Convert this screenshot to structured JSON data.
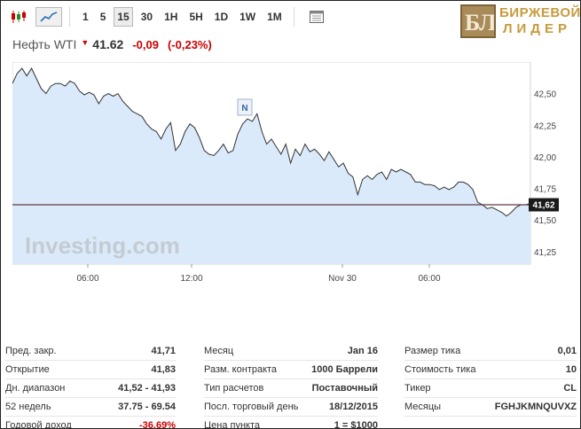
{
  "toolbar": {
    "chart_types": [
      {
        "icon": "candlestick-icon",
        "active": false
      },
      {
        "icon": "line-chart-icon",
        "active": true
      }
    ],
    "timeframes": [
      {
        "label": "1",
        "active": false
      },
      {
        "label": "5",
        "active": false
      },
      {
        "label": "15",
        "active": true
      },
      {
        "label": "30",
        "active": false
      },
      {
        "label": "1H",
        "active": false
      },
      {
        "label": "5H",
        "active": false
      },
      {
        "label": "1D",
        "active": false
      },
      {
        "label": "1W",
        "active": false
      },
      {
        "label": "1M",
        "active": false
      }
    ],
    "calendar_icon": "calendar-icon"
  },
  "logo": {
    "mark": "БЛ",
    "line1": "БИРЖЕВОЙ",
    "line2": "ЛИДЕР"
  },
  "quote": {
    "name": "Нефть WTI",
    "price": "41.62",
    "change": "-0,09",
    "change_pct": "(-0,23%)",
    "direction_icon": "down-arrow-icon"
  },
  "colors": {
    "line": "#333333",
    "fill": "#dbeafa",
    "price_line": "#5c3a44",
    "negative": "#cc0000",
    "logo": "#c79a3c"
  },
  "chart_data": {
    "type": "area",
    "watermark": "Investing.com",
    "x_tick_labels": [
      "06:00",
      "12:00",
      "Nov 30",
      "06:00"
    ],
    "y_ticks": [
      42.5,
      42.25,
      42.0,
      41.75,
      41.5,
      41.25
    ],
    "y_tick_labels": [
      "42,50",
      "42,25",
      "42,00",
      "41,75",
      "41,50",
      "41,25"
    ],
    "ylim": [
      41.15,
      42.75
    ],
    "current_price": 41.62,
    "current_price_label": "41,62",
    "news_marker": "N",
    "grid": false,
    "series": [
      {
        "values": [
          42.58,
          42.66,
          42.7,
          42.64,
          42.7,
          42.62,
          42.54,
          42.5,
          42.56,
          42.58,
          42.58,
          42.56,
          42.6,
          42.58,
          42.52,
          42.49,
          42.51,
          42.49,
          42.42,
          42.48,
          42.5,
          42.48,
          42.5,
          42.44,
          42.4,
          42.36,
          42.34,
          42.32,
          42.26,
          42.22,
          42.2,
          42.14,
          42.22,
          42.27,
          42.05,
          42.1,
          42.2,
          42.26,
          42.23,
          42.15,
          42.05,
          42.02,
          42.01,
          42.05,
          42.1,
          42.03,
          42.05,
          42.18,
          42.26,
          42.3,
          42.28,
          42.34,
          42.2,
          42.1,
          42.14,
          42.08,
          42.02,
          42.1,
          41.95,
          42.06,
          42.01,
          42.1,
          42.04,
          42.06,
          42.02,
          41.97,
          42.04,
          41.98,
          41.92,
          41.95,
          41.87,
          41.84,
          41.7,
          41.82,
          41.85,
          41.82,
          41.86,
          41.88,
          41.82,
          41.9,
          41.88,
          41.9,
          41.88,
          41.86,
          41.8,
          41.8,
          41.78,
          41.78,
          41.77,
          41.74,
          41.76,
          41.74,
          41.76,
          41.8,
          41.8,
          41.78,
          41.74,
          41.64,
          41.62,
          41.59,
          41.6,
          41.58,
          41.56,
          41.53,
          41.56,
          41.6,
          41.62,
          41.62,
          41.63
        ]
      }
    ]
  },
  "stats": [
    [
      {
        "label": "Пред. закр.",
        "value": "41,71"
      },
      {
        "label": "Открытие",
        "value": "41,83"
      },
      {
        "label": "Дн. диапазон",
        "value": "41,52 - 41,93"
      },
      {
        "label": "52 недель",
        "value": "37.75 - 69.54"
      },
      {
        "label": "Годовой доход",
        "value": "-36,69%",
        "negative": true
      }
    ],
    [
      {
        "label": "Месяц",
        "value": "Jan 16"
      },
      {
        "label": "Разм. контракта",
        "value": "1000 Баррели"
      },
      {
        "label": "Тип расчетов",
        "value": "Поставочный"
      },
      {
        "label": "Посл. торговый день",
        "value": "18/12/2015"
      },
      {
        "label": "Цена пункта",
        "value": "1 = $1000"
      }
    ],
    [
      {
        "label": "Размер тика",
        "value": "0,01"
      },
      {
        "label": "Стоимость тика",
        "value": "10"
      },
      {
        "label": "Тикер",
        "value": "CL"
      },
      {
        "label": "Месяцы",
        "value": "FGHJKMNQUVXZ"
      }
    ]
  ]
}
